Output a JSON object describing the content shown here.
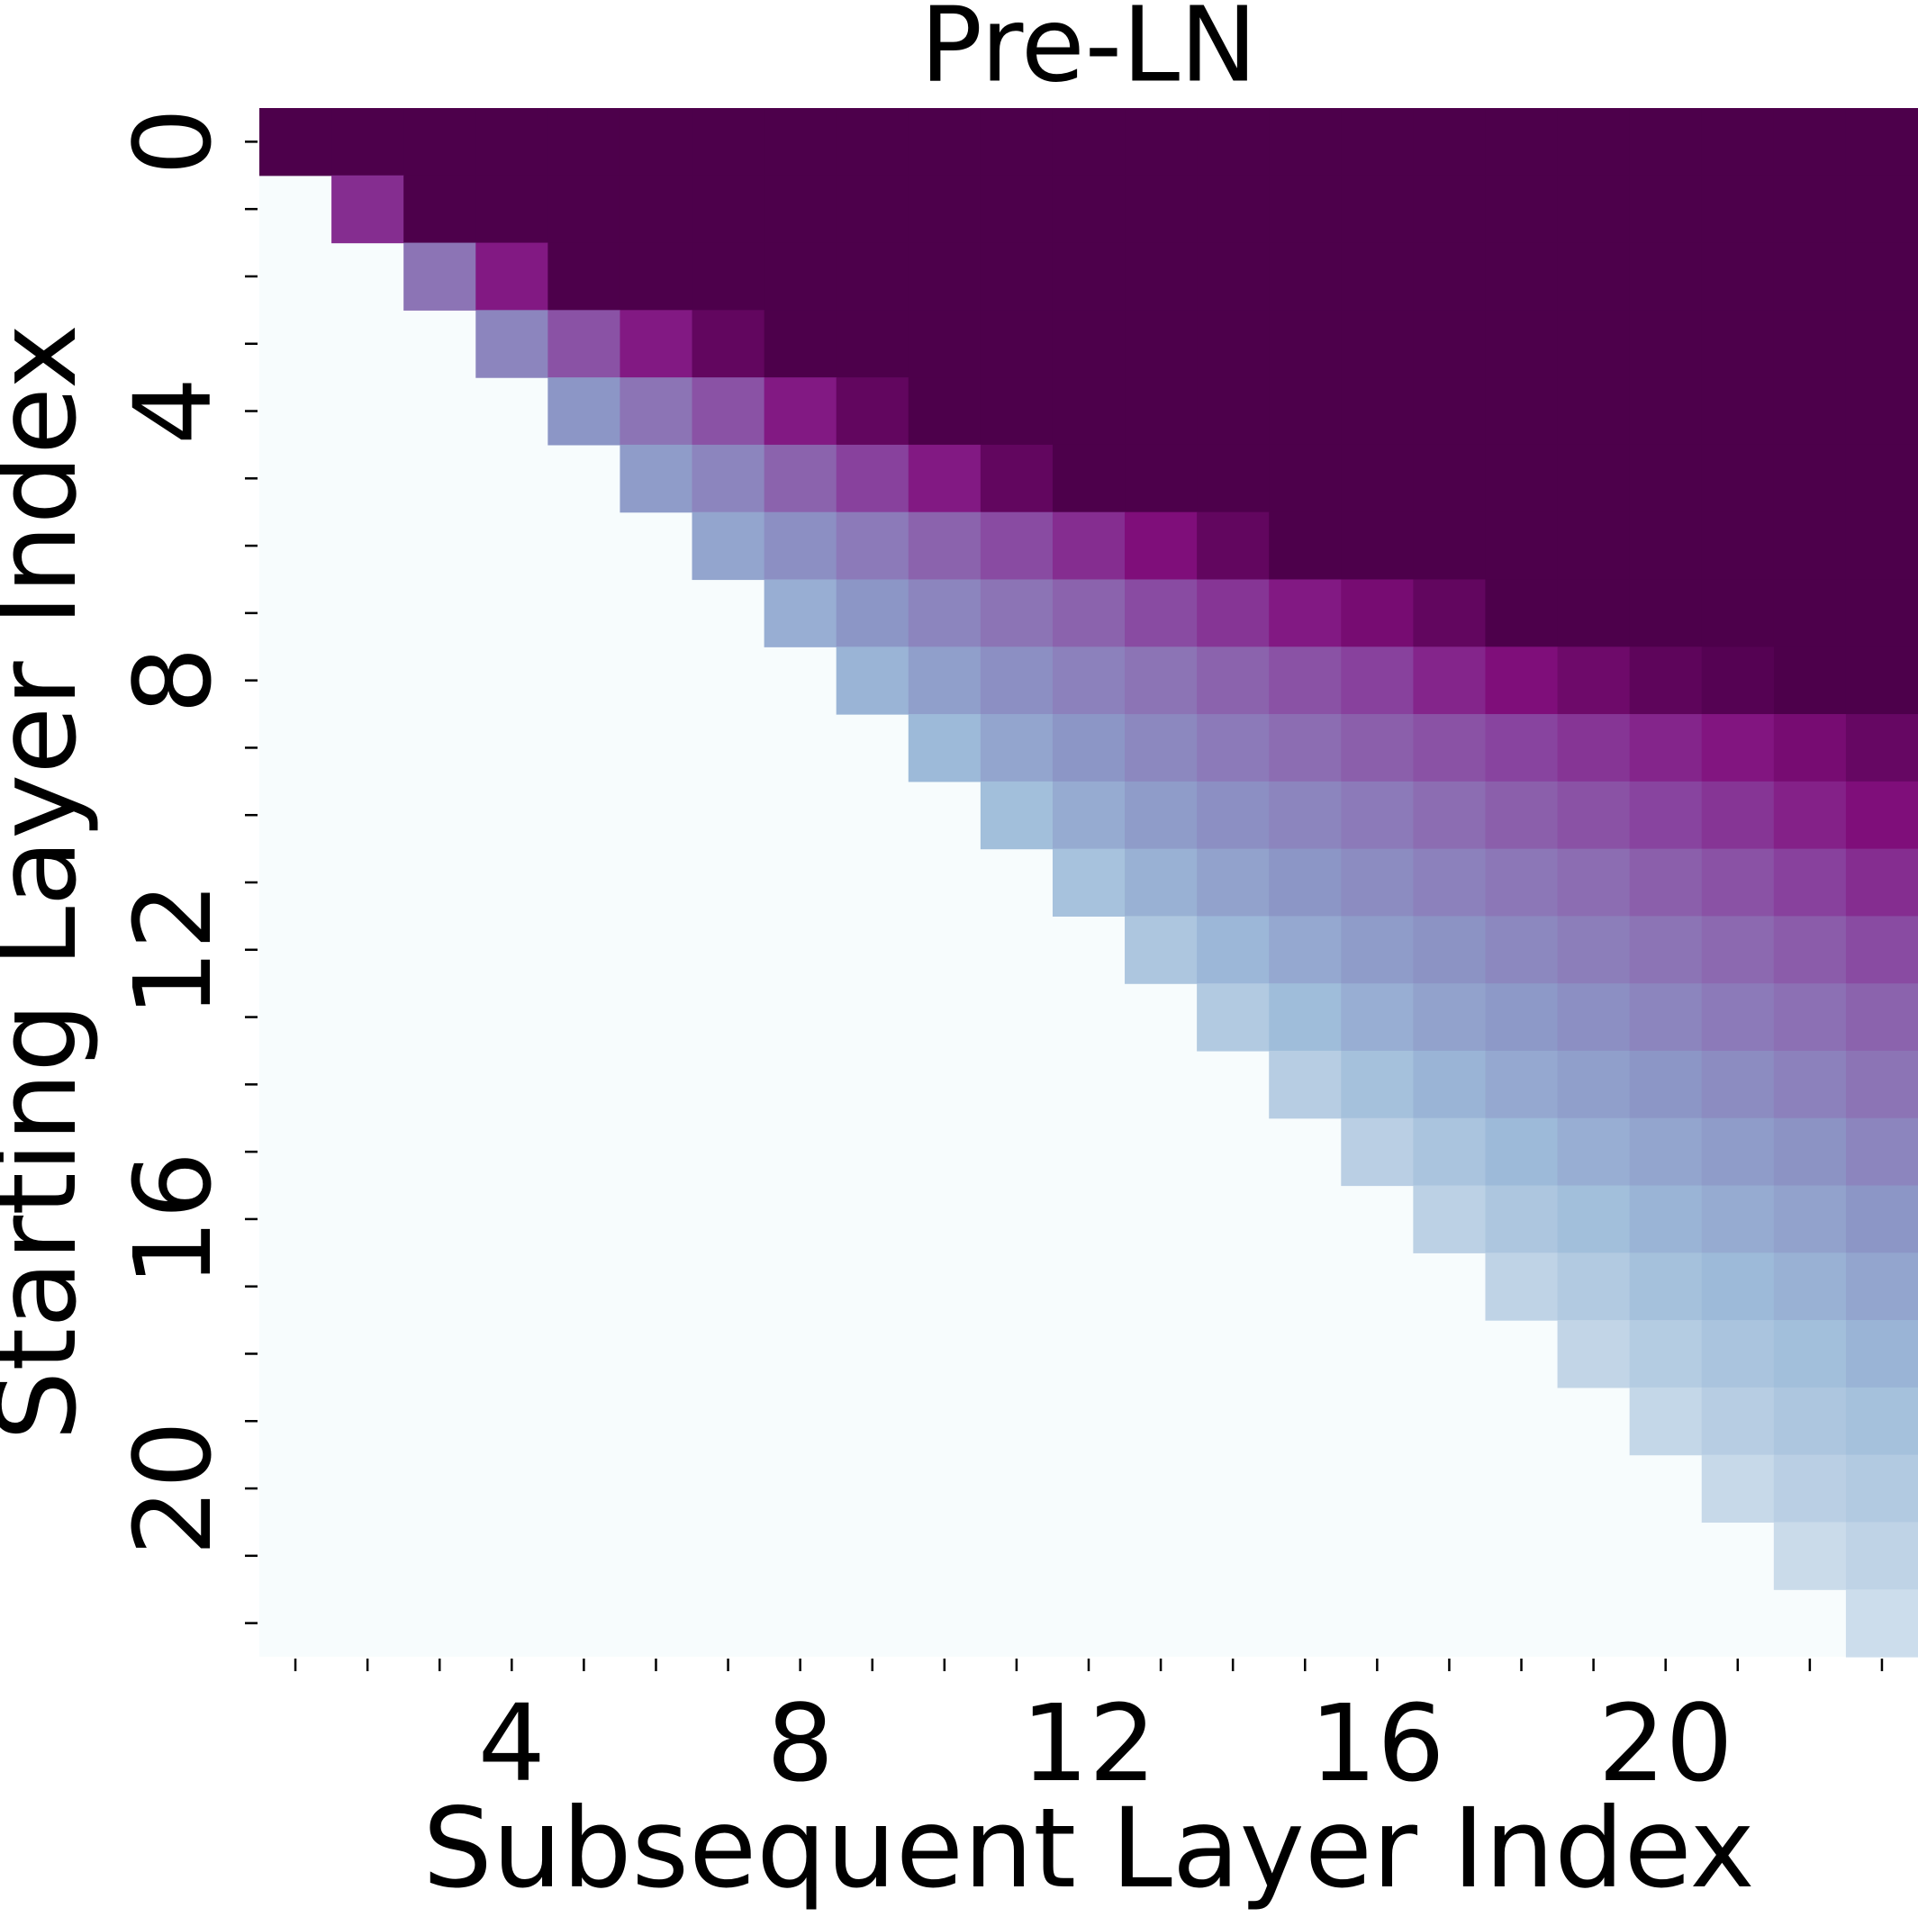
{
  "chart_data": {
    "type": "heatmap",
    "title": "Pre-LN",
    "x_label": "Subsequent Layer Index",
    "y_label": "Starting Layer Index",
    "x": [
      null,
      null,
      null,
      4,
      null,
      null,
      null,
      8,
      null,
      null,
      null,
      12,
      null,
      null,
      null,
      16,
      null,
      null,
      null,
      20,
      null,
      null,
      null
    ],
    "y": [
      0,
      null,
      null,
      null,
      4,
      null,
      null,
      null,
      8,
      null,
      null,
      null,
      12,
      null,
      null,
      null,
      16,
      null,
      null,
      null,
      20,
      null,
      null
    ],
    "vlim": [
      0,
      1
    ],
    "colormap": [
      "#f7fcfd",
      "#e0ecf4",
      "#bfd3e6",
      "#9ebcda",
      "#8c96c6",
      "#8c6bb1",
      "#88419d",
      "#810f7c",
      "#4d004b"
    ],
    "values": [
      [
        1,
        1,
        1,
        1,
        1,
        1,
        1,
        1,
        1,
        1,
        1,
        1,
        1,
        1,
        1,
        1,
        1,
        1,
        1,
        1,
        1,
        1,
        1
      ],
      [
        null,
        0.8,
        1,
        1,
        1,
        1,
        1,
        1,
        1,
        1,
        1,
        1,
        1,
        1,
        1,
        1,
        1,
        1,
        1,
        1,
        1,
        1,
        1
      ],
      [
        null,
        null,
        0.6,
        0.85,
        1,
        1,
        1,
        1,
        1,
        1,
        1,
        1,
        1,
        1,
        1,
        1,
        1,
        1,
        1,
        1,
        1,
        1,
        1
      ],
      [
        null,
        null,
        null,
        0.55,
        0.7,
        0.85,
        0.95,
        1,
        1,
        1,
        1,
        1,
        1,
        1,
        1,
        1,
        1,
        1,
        1,
        1,
        1,
        1,
        1
      ],
      [
        null,
        null,
        null,
        null,
        0.5,
        0.6,
        0.7,
        0.85,
        0.95,
        1,
        1,
        1,
        1,
        1,
        1,
        1,
        1,
        1,
        1,
        1,
        1,
        1,
        1
      ],
      [
        null,
        null,
        null,
        null,
        null,
        0.48,
        0.55,
        0.65,
        0.75,
        0.85,
        0.95,
        1,
        1,
        1,
        1,
        1,
        1,
        1,
        1,
        1,
        1,
        1,
        1
      ],
      [
        null,
        null,
        null,
        null,
        null,
        null,
        0.45,
        0.52,
        0.58,
        0.65,
        0.72,
        0.8,
        0.88,
        0.95,
        1,
        1,
        1,
        1,
        1,
        1,
        1,
        1,
        1
      ],
      [
        null,
        null,
        null,
        null,
        null,
        null,
        null,
        0.42,
        0.5,
        0.55,
        0.6,
        0.65,
        0.72,
        0.78,
        0.85,
        0.9,
        0.95,
        1,
        1,
        1,
        1,
        1,
        1
      ],
      [
        null,
        null,
        null,
        null,
        null,
        null,
        null,
        null,
        0.4,
        0.47,
        0.52,
        0.56,
        0.6,
        0.65,
        0.7,
        0.75,
        0.82,
        0.88,
        0.92,
        0.96,
        0.98,
        1,
        1
      ],
      [
        null,
        null,
        null,
        null,
        null,
        null,
        null,
        null,
        null,
        0.38,
        0.45,
        0.5,
        0.54,
        0.58,
        0.62,
        0.66,
        0.7,
        0.74,
        0.78,
        0.82,
        0.86,
        0.9,
        0.94
      ],
      [
        null,
        null,
        null,
        null,
        null,
        null,
        null,
        null,
        null,
        null,
        0.36,
        0.43,
        0.48,
        0.52,
        0.55,
        0.58,
        0.62,
        0.66,
        0.7,
        0.74,
        0.78,
        0.83,
        0.88
      ],
      [
        null,
        null,
        null,
        null,
        null,
        null,
        null,
        null,
        null,
        null,
        null,
        0.34,
        0.41,
        0.46,
        0.5,
        0.53,
        0.56,
        0.59,
        0.62,
        0.66,
        0.7,
        0.75,
        0.8
      ],
      [
        null,
        null,
        null,
        null,
        null,
        null,
        null,
        null,
        null,
        null,
        null,
        null,
        0.32,
        0.39,
        0.44,
        0.48,
        0.51,
        0.54,
        0.57,
        0.6,
        0.63,
        0.67,
        0.72
      ],
      [
        null,
        null,
        null,
        null,
        null,
        null,
        null,
        null,
        null,
        null,
        null,
        null,
        null,
        0.3,
        0.37,
        0.42,
        0.46,
        0.49,
        0.52,
        0.55,
        0.58,
        0.61,
        0.65
      ],
      [
        null,
        null,
        null,
        null,
        null,
        null,
        null,
        null,
        null,
        null,
        null,
        null,
        null,
        null,
        0.28,
        0.35,
        0.4,
        0.44,
        0.47,
        0.5,
        0.53,
        0.56,
        0.6
      ],
      [
        null,
        null,
        null,
        null,
        null,
        null,
        null,
        null,
        null,
        null,
        null,
        null,
        null,
        null,
        null,
        0.27,
        0.33,
        0.38,
        0.42,
        0.45,
        0.48,
        0.51,
        0.55
      ],
      [
        null,
        null,
        null,
        null,
        null,
        null,
        null,
        null,
        null,
        null,
        null,
        null,
        null,
        null,
        null,
        null,
        0.26,
        0.32,
        0.36,
        0.4,
        0.43,
        0.46,
        0.5
      ],
      [
        null,
        null,
        null,
        null,
        null,
        null,
        null,
        null,
        null,
        null,
        null,
        null,
        null,
        null,
        null,
        null,
        null,
        0.25,
        0.3,
        0.35,
        0.38,
        0.41,
        0.45
      ],
      [
        null,
        null,
        null,
        null,
        null,
        null,
        null,
        null,
        null,
        null,
        null,
        null,
        null,
        null,
        null,
        null,
        null,
        null,
        0.24,
        0.29,
        0.33,
        0.36,
        0.4
      ],
      [
        null,
        null,
        null,
        null,
        null,
        null,
        null,
        null,
        null,
        null,
        null,
        null,
        null,
        null,
        null,
        null,
        null,
        null,
        null,
        0.23,
        0.28,
        0.32,
        0.35
      ],
      [
        null,
        null,
        null,
        null,
        null,
        null,
        null,
        null,
        null,
        null,
        null,
        null,
        null,
        null,
        null,
        null,
        null,
        null,
        null,
        null,
        0.22,
        0.27,
        0.3
      ],
      [
        null,
        null,
        null,
        null,
        null,
        null,
        null,
        null,
        null,
        null,
        null,
        null,
        null,
        null,
        null,
        null,
        null,
        null,
        null,
        null,
        null,
        0.21,
        0.25
      ],
      [
        null,
        null,
        null,
        null,
        null,
        null,
        null,
        null,
        null,
        null,
        null,
        null,
        null,
        null,
        null,
        null,
        null,
        null,
        null,
        null,
        null,
        null,
        0.2
      ]
    ]
  }
}
